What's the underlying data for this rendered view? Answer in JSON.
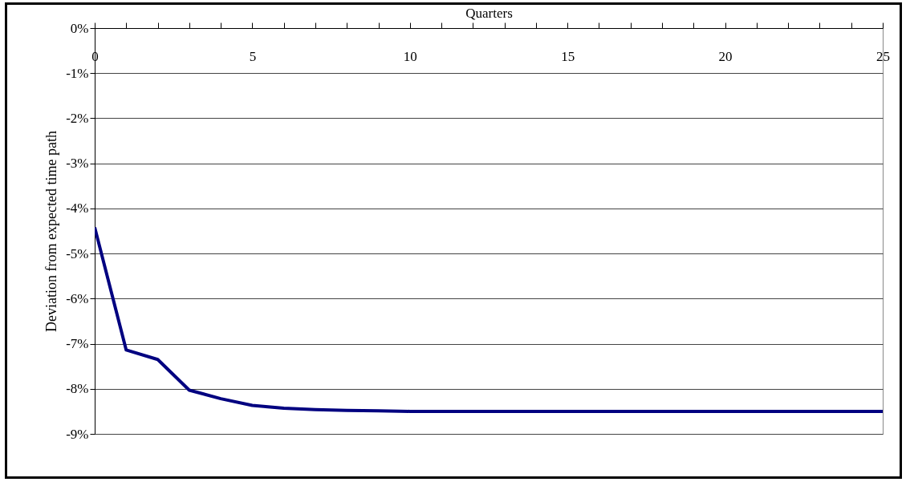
{
  "chart_data": {
    "type": "line",
    "xlabel": "Quarters",
    "ylabel": "Deviation from expected time path",
    "x": [
      0,
      1,
      2,
      3,
      4,
      5,
      6,
      7,
      8,
      9,
      10,
      11,
      12,
      13,
      14,
      15,
      16,
      17,
      18,
      19,
      20,
      21,
      22,
      23,
      24,
      25
    ],
    "series": [
      {
        "color": "#000080",
        "values": [
          -4.42,
          -7.14,
          -7.35,
          -8.03,
          -8.22,
          -8.37,
          -8.43,
          -8.46,
          -8.48,
          -8.49,
          -8.5,
          -8.5,
          -8.5,
          -8.5,
          -8.5,
          -8.5,
          -8.5,
          -8.5,
          -8.5,
          -8.5,
          -8.5,
          -8.5,
          -8.5,
          -8.5,
          -8.5,
          -8.5
        ]
      }
    ],
    "xlim": [
      0,
      25
    ],
    "xticks": [
      0,
      {
        "value": 1,
        "label": null
      },
      {
        "value": 2,
        "label": null
      },
      {
        "value": 3,
        "label": null
      },
      {
        "value": 4,
        "label": null
      },
      5,
      {
        "value": 6,
        "label": null
      },
      {
        "value": 7,
        "label": null
      },
      {
        "value": 8,
        "label": null
      },
      {
        "value": 9,
        "label": null
      },
      10,
      {
        "value": 11,
        "label": null
      },
      {
        "value": 12,
        "label": null
      },
      {
        "value": 13,
        "label": null
      },
      {
        "value": 14,
        "label": null
      },
      15,
      {
        "value": 16,
        "label": null
      },
      {
        "value": 17,
        "label": null
      },
      {
        "value": 18,
        "label": null
      },
      {
        "value": 19,
        "label": null
      },
      20,
      {
        "value": 21,
        "label": null
      },
      {
        "value": 22,
        "label": null
      },
      {
        "value": 23,
        "label": null
      },
      {
        "value": 24,
        "label": null
      },
      25
    ],
    "ylim": [
      -9,
      0
    ],
    "yticks": [
      {
        "value": 0,
        "label": "0%"
      },
      {
        "value": -1,
        "label": "-1%"
      },
      {
        "value": -2,
        "label": "-2%"
      },
      {
        "value": -3,
        "label": "-3%"
      },
      {
        "value": -4,
        "label": "-4%"
      },
      {
        "value": -5,
        "label": "-5%"
      },
      {
        "value": -6,
        "label": "-6%"
      },
      {
        "value": -7,
        "label": "-7%"
      },
      {
        "value": -8,
        "label": "-8%"
      },
      {
        "value": -9,
        "label": "-9%"
      }
    ],
    "grid": "y",
    "marker": "none",
    "line_style": "solid"
  }
}
